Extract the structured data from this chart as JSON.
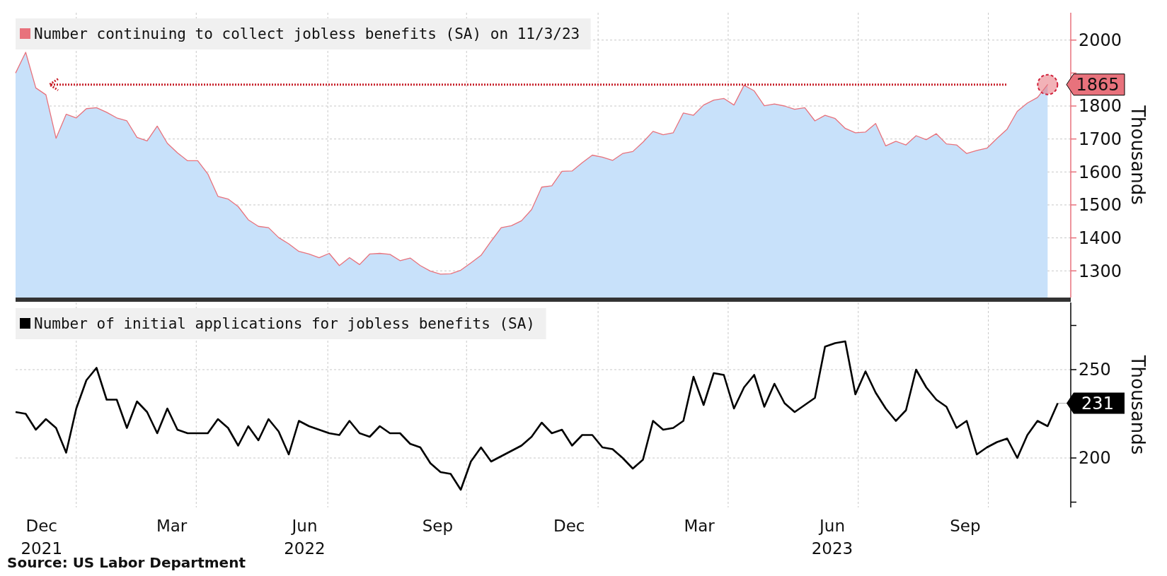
{
  "chart_data": [
    {
      "type": "area",
      "tick_labels": "y",
      "legend": "top left",
      "grid": true,
      "ylabel": "Thousands",
      "xlim": [
        "2021-11-13",
        "2023-11-13"
      ],
      "xticks": [
        {
          "value": "2021-12-25",
          "label": null
        },
        {
          "value": "2022-03-18",
          "label": null
        },
        {
          "value": "2022-06-17",
          "label": null
        },
        {
          "value": "2022-09-21",
          "label": null
        },
        {
          "value": "2022-12-21",
          "label": null
        },
        {
          "value": "2023-03-21",
          "label": null
        },
        {
          "value": "2023-06-19",
          "label": null
        },
        {
          "value": "2023-09-17",
          "label": null
        }
      ],
      "ylim": [
        1219,
        2083
      ],
      "yticks": [
        1300,
        1400,
        1500,
        1600,
        1700,
        1800,
        {
          "value": 1900,
          "label": null
        },
        2000
      ],
      "ref_lines": [
        {
          "axis": "y",
          "value": 1865,
          "color": "#c8202a",
          "line_style": "dotted"
        }
      ],
      "annotations": [
        {
          "text": "1865",
          "x": "2023-10-28",
          "y": 1865
        }
      ],
      "x": [
        "2021-11-13",
        "2021-11-20",
        "2021-11-27",
        "2021-12-04",
        "2021-12-11",
        "2021-12-18",
        "2021-12-25",
        "2022-01-01",
        "2022-01-08",
        "2022-01-15",
        "2022-01-22",
        "2022-01-29",
        "2022-02-05",
        "2022-02-12",
        "2022-02-19",
        "2022-02-26",
        "2022-03-05",
        "2022-03-12",
        "2022-03-19",
        "2022-03-26",
        "2022-04-02",
        "2022-04-09",
        "2022-04-16",
        "2022-04-23",
        "2022-04-30",
        "2022-05-07",
        "2022-05-14",
        "2022-05-21",
        "2022-05-28",
        "2022-06-04",
        "2022-06-11",
        "2022-06-18",
        "2022-06-25",
        "2022-07-02",
        "2022-07-09",
        "2022-07-16",
        "2022-07-23",
        "2022-07-30",
        "2022-08-06",
        "2022-08-13",
        "2022-08-20",
        "2022-08-27",
        "2022-09-03",
        "2022-09-10",
        "2022-09-17",
        "2022-09-24",
        "2022-10-01",
        "2022-10-08",
        "2022-10-15",
        "2022-10-22",
        "2022-10-29",
        "2022-11-05",
        "2022-11-12",
        "2022-11-19",
        "2022-11-26",
        "2022-12-03",
        "2022-12-10",
        "2022-12-17",
        "2022-12-24",
        "2022-12-31",
        "2023-01-07",
        "2023-01-14",
        "2023-01-21",
        "2023-01-28",
        "2023-02-04",
        "2023-02-11",
        "2023-02-18",
        "2023-02-25",
        "2023-03-04",
        "2023-03-11",
        "2023-03-18",
        "2023-03-25",
        "2023-04-01",
        "2023-04-08",
        "2023-04-15",
        "2023-04-22",
        "2023-04-29",
        "2023-05-06",
        "2023-05-13",
        "2023-05-20",
        "2023-05-27",
        "2023-06-03",
        "2023-06-10",
        "2023-06-17",
        "2023-06-24",
        "2023-07-01",
        "2023-07-08",
        "2023-07-15",
        "2023-07-22",
        "2023-07-29",
        "2023-08-05",
        "2023-08-12",
        "2023-08-19",
        "2023-08-26",
        "2023-09-02",
        "2023-09-09",
        "2023-09-16",
        "2023-09-23",
        "2023-09-30",
        "2023-10-07",
        "2023-10-14",
        "2023-10-21",
        "2023-10-28"
      ],
      "series": [
        {
          "name": "Number continuing to collect jobless benefits (SA) on 11/3/23",
          "color": "#e8727c",
          "values": [
            1900,
            1963,
            1855,
            1834,
            1702,
            1775,
            1764,
            1792,
            1795,
            1781,
            1764,
            1755,
            1705,
            1694,
            1739,
            1687,
            1658,
            1634,
            1634,
            1594,
            1526,
            1518,
            1495,
            1455,
            1435,
            1431,
            1401,
            1382,
            1359,
            1351,
            1340,
            1353,
            1316,
            1340,
            1319,
            1351,
            1353,
            1350,
            1331,
            1339,
            1316,
            1299,
            1290,
            1291,
            1302,
            1324,
            1347,
            1390,
            1431,
            1437,
            1452,
            1486,
            1554,
            1558,
            1602,
            1603,
            1628,
            1651,
            1645,
            1635,
            1656,
            1662,
            1690,
            1723,
            1713,
            1719,
            1779,
            1772,
            1803,
            1818,
            1823,
            1803,
            1863,
            1846,
            1801,
            1806,
            1800,
            1790,
            1795,
            1755,
            1772,
            1762,
            1732,
            1719,
            1721,
            1747,
            1679,
            1693,
            1682,
            1710,
            1698,
            1716,
            1685,
            1682,
            1656,
            1665,
            1672,
            1702,
            1730,
            1784,
            1809,
            1826,
            1865
          ]
        }
      ]
    },
    {
      "type": "line",
      "legend": "top left",
      "grid": true,
      "ylabel": "Thousands",
      "xlim": [
        "2021-11-13",
        "2023-11-13"
      ],
      "xticks": [
        {
          "value": "2021-12-01",
          "label": "Dec\n2021"
        },
        {
          "value": "2022-03-01",
          "label": "Mar"
        },
        {
          "value": "2022-06-01",
          "label": "Jun\n2022"
        },
        {
          "value": "2022-09-01",
          "label": "Sep"
        },
        {
          "value": "2022-12-01",
          "label": "Dec"
        },
        {
          "value": "2023-03-01",
          "label": "Mar"
        },
        {
          "value": "2023-06-01",
          "label": "Jun\n2023"
        },
        {
          "value": "2023-09-01",
          "label": "Sep"
        },
        {
          "value": "2021-12-25",
          "label": null
        },
        {
          "value": "2022-03-18",
          "label": null
        },
        {
          "value": "2022-06-17",
          "label": null
        },
        {
          "value": "2022-09-21",
          "label": null
        },
        {
          "value": "2022-12-21",
          "label": null
        },
        {
          "value": "2023-03-21",
          "label": null
        },
        {
          "value": "2023-06-19",
          "label": null
        },
        {
          "value": "2023-09-17",
          "label": null
        }
      ],
      "ylim": [
        172,
        288
      ],
      "yticks": [
        {
          "value": 175,
          "label": null
        },
        200,
        250,
        {
          "value": 275,
          "label": null
        }
      ],
      "annotations": [
        {
          "text": "231",
          "x": "2023-11-04",
          "y": 231
        },
        "Source: US Labor Department"
      ],
      "x": [
        "2021-11-13",
        "2021-11-20",
        "2021-11-27",
        "2021-12-04",
        "2021-12-11",
        "2021-12-18",
        "2021-12-25",
        "2022-01-01",
        "2022-01-08",
        "2022-01-15",
        "2022-01-22",
        "2022-01-29",
        "2022-02-05",
        "2022-02-12",
        "2022-02-19",
        "2022-02-26",
        "2022-03-05",
        "2022-03-12",
        "2022-03-19",
        "2022-03-26",
        "2022-04-02",
        "2022-04-09",
        "2022-04-16",
        "2022-04-23",
        "2022-04-30",
        "2022-05-07",
        "2022-05-14",
        "2022-05-21",
        "2022-05-28",
        "2022-06-04",
        "2022-06-11",
        "2022-06-18",
        "2022-06-25",
        "2022-07-02",
        "2022-07-09",
        "2022-07-16",
        "2022-07-23",
        "2022-07-30",
        "2022-08-06",
        "2022-08-13",
        "2022-08-20",
        "2022-08-27",
        "2022-09-03",
        "2022-09-10",
        "2022-09-17",
        "2022-09-24",
        "2022-10-01",
        "2022-10-08",
        "2022-10-15",
        "2022-10-22",
        "2022-10-29",
        "2022-11-05",
        "2022-11-12",
        "2022-11-19",
        "2022-11-26",
        "2022-12-03",
        "2022-12-10",
        "2022-12-17",
        "2022-12-24",
        "2022-12-31",
        "2023-01-07",
        "2023-01-14",
        "2023-01-21",
        "2023-01-28",
        "2023-02-04",
        "2023-02-11",
        "2023-02-18",
        "2023-02-25",
        "2023-03-04",
        "2023-03-11",
        "2023-03-18",
        "2023-03-25",
        "2023-04-01",
        "2023-04-08",
        "2023-04-15",
        "2023-04-22",
        "2023-04-29",
        "2023-05-06",
        "2023-05-13",
        "2023-05-20",
        "2023-05-27",
        "2023-06-03",
        "2023-06-10",
        "2023-06-17",
        "2023-06-24",
        "2023-07-01",
        "2023-07-08",
        "2023-07-15",
        "2023-07-22",
        "2023-07-29",
        "2023-08-05",
        "2023-08-12",
        "2023-08-19",
        "2023-08-26",
        "2023-09-02",
        "2023-09-09",
        "2023-09-16",
        "2023-09-23",
        "2023-09-30",
        "2023-10-07",
        "2023-10-14",
        "2023-10-21",
        "2023-10-28",
        "2023-11-04"
      ],
      "series": [
        {
          "name": "Number of initial applications for jobless benefits (SA)",
          "color": "#000000",
          "values": [
            226,
            225,
            216,
            222,
            217,
            203,
            228,
            244,
            251,
            233,
            233,
            217,
            232,
            226,
            214,
            228,
            216,
            214,
            214,
            214,
            222,
            217,
            207,
            218,
            210,
            222,
            215,
            202,
            221,
            218,
            216,
            214,
            213,
            221,
            214,
            212,
            218,
            214,
            214,
            208,
            206,
            197,
            192,
            191,
            182,
            198,
            206,
            198,
            201,
            204,
            207,
            212,
            220,
            214,
            216,
            207,
            213,
            213,
            206,
            205,
            200,
            194,
            199,
            221,
            216,
            217,
            221,
            246,
            230,
            248,
            247,
            228,
            240,
            247,
            229,
            242,
            231,
            226,
            230,
            234,
            263,
            265,
            266,
            236,
            249,
            237,
            228,
            221,
            227,
            250,
            240,
            233,
            229,
            217,
            221,
            202,
            206,
            209,
            211,
            200,
            213,
            221,
            218,
            231
          ]
        }
      ]
    }
  ]
}
